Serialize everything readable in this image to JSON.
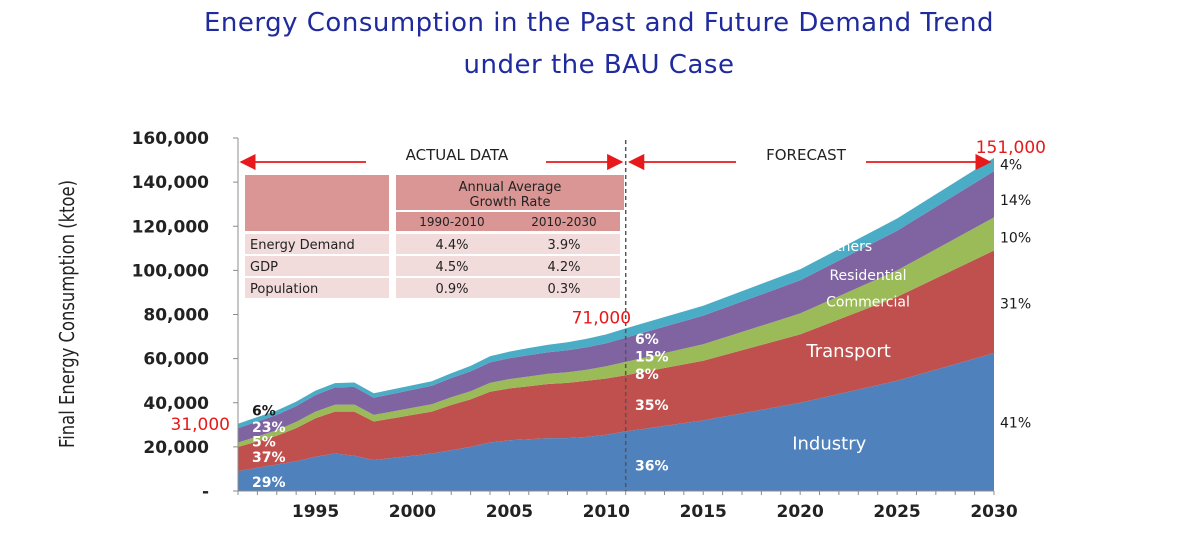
{
  "title_line1": "Energy Consumption in the Past and Future Demand Trend",
  "title_line2": "under the BAU Case",
  "colors": {
    "industry": "#4f81bd",
    "transport": "#c0504d",
    "commercial": "#9bbb59",
    "residential": "#8064a2",
    "others": "#4bacc6",
    "highlight": "#e8191b",
    "title": "#1f2a9e",
    "table_header": "#d99694",
    "table_cell": "#f2dcdb"
  },
  "chart_data": {
    "type": "area",
    "stacked": true,
    "ylabel": "Final Energy Consumption (ktoe)",
    "xlim": [
      1991,
      2030
    ],
    "ylim": [
      0,
      160000
    ],
    "y_ticks": [
      0,
      20000,
      40000,
      60000,
      80000,
      100000,
      120000,
      140000,
      160000
    ],
    "y_tick_labels": [
      "-",
      "20,000",
      "40,000",
      "60,000",
      "80,000",
      "100,000",
      "120,000",
      "140,000",
      "160,000"
    ],
    "x_ticks": [
      1995,
      2000,
      2005,
      2010,
      2015,
      2020,
      2025,
      2030
    ],
    "x": [
      1991,
      1992,
      1993,
      1994,
      1995,
      1996,
      1997,
      1998,
      1999,
      2000,
      2001,
      2002,
      2003,
      2004,
      2005,
      2006,
      2007,
      2008,
      2009,
      2010,
      2011,
      2015,
      2020,
      2025,
      2030
    ],
    "series": [
      {
        "key": "industry",
        "name": "Industry",
        "values": [
          9000,
          10500,
          12000,
          13500,
          15500,
          17000,
          16000,
          14000,
          15000,
          16000,
          17000,
          18500,
          20000,
          22000,
          23000,
          23500,
          24000,
          24000,
          24500,
          25500,
          27000,
          32000,
          40000,
          50000,
          62500
        ]
      },
      {
        "key": "transport",
        "name": "Transport",
        "values": [
          11000,
          12000,
          13000,
          15000,
          17500,
          19000,
          20000,
          17500,
          18000,
          18500,
          19000,
          20500,
          21500,
          23000,
          23500,
          24000,
          24500,
          25000,
          25500,
          25500,
          25500,
          27000,
          31000,
          38000,
          46500
        ]
      },
      {
        "key": "commercial",
        "name": "Commercial",
        "values": [
          2000,
          2200,
          2500,
          2800,
          3000,
          3100,
          3200,
          3000,
          3100,
          3200,
          3300,
          3500,
          3700,
          4000,
          4200,
          4400,
          4600,
          4800,
          5000,
          5500,
          6000,
          7500,
          9500,
          12000,
          15000
        ]
      },
      {
        "key": "residential",
        "name": "Residential",
        "values": [
          6500,
          6800,
          7000,
          7200,
          7500,
          7800,
          8000,
          7800,
          8000,
          8200,
          8400,
          8700,
          9000,
          9300,
          9500,
          9700,
          9800,
          10000,
          10200,
          10500,
          11000,
          13000,
          15000,
          18000,
          21000
        ]
      },
      {
        "key": "others",
        "name": "Others",
        "values": [
          2000,
          2000,
          2000,
          2000,
          2000,
          2000,
          2000,
          2000,
          2000,
          2000,
          2000,
          2200,
          2500,
          2800,
          3000,
          3200,
          3400,
          3600,
          3800,
          4000,
          4200,
          4500,
          5000,
          5500,
          6000
        ]
      }
    ],
    "period_labels": {
      "actual": "ACTUAL DATA",
      "forecast": "FORECAST"
    },
    "period_split": 2011,
    "totals": [
      {
        "x": 1991,
        "label": "31,000"
      },
      {
        "x": 2010,
        "label": "71,000"
      },
      {
        "x": 2030,
        "label": "151,000"
      }
    ],
    "shares_1991": [
      {
        "label": "29%",
        "y": 4000
      },
      {
        "label": "37%",
        "y": 15500
      },
      {
        "label": "5%",
        "y": 22500
      },
      {
        "label": "23%",
        "y": 29000
      },
      {
        "label": "6%",
        "y": 36500
      }
    ],
    "shares_2011": [
      {
        "label": "36%",
        "y": 11500
      },
      {
        "label": "35%",
        "y": 39000
      },
      {
        "label": "8%",
        "y": 53000
      },
      {
        "label": "15%",
        "y": 61000
      },
      {
        "label": "6%",
        "y": 69000
      }
    ],
    "shares_2030": [
      {
        "label": "41%",
        "y": 31000
      },
      {
        "label": "31%",
        "y": 85000
      },
      {
        "label": "10%",
        "y": 115000
      },
      {
        "label": "14%",
        "y": 132000
      },
      {
        "label": "4%",
        "y": 148000
      }
    ],
    "series_labels": [
      {
        "label": "Industry",
        "x": 2021.5,
        "y": 21000
      },
      {
        "label": "Transport",
        "x": 2022.5,
        "y": 63000
      },
      {
        "label": "Commercial",
        "x": 2023.5,
        "y": 86000
      },
      {
        "label": "Residential",
        "x": 2023.5,
        "y": 98000
      },
      {
        "label": "Others",
        "x": 2022.5,
        "y": 111000
      }
    ],
    "growth_table": {
      "header": "Annual Average Growth Rate",
      "periods": [
        "1990-2010",
        "2010-2030"
      ],
      "rows": [
        {
          "label": "Energy Demand",
          "values": [
            "4.4%",
            "3.9%"
          ]
        },
        {
          "label": "GDP",
          "values": [
            "4.5%",
            "4.2%"
          ]
        },
        {
          "label": "Population",
          "values": [
            "0.9%",
            "0.3%"
          ]
        }
      ]
    }
  }
}
